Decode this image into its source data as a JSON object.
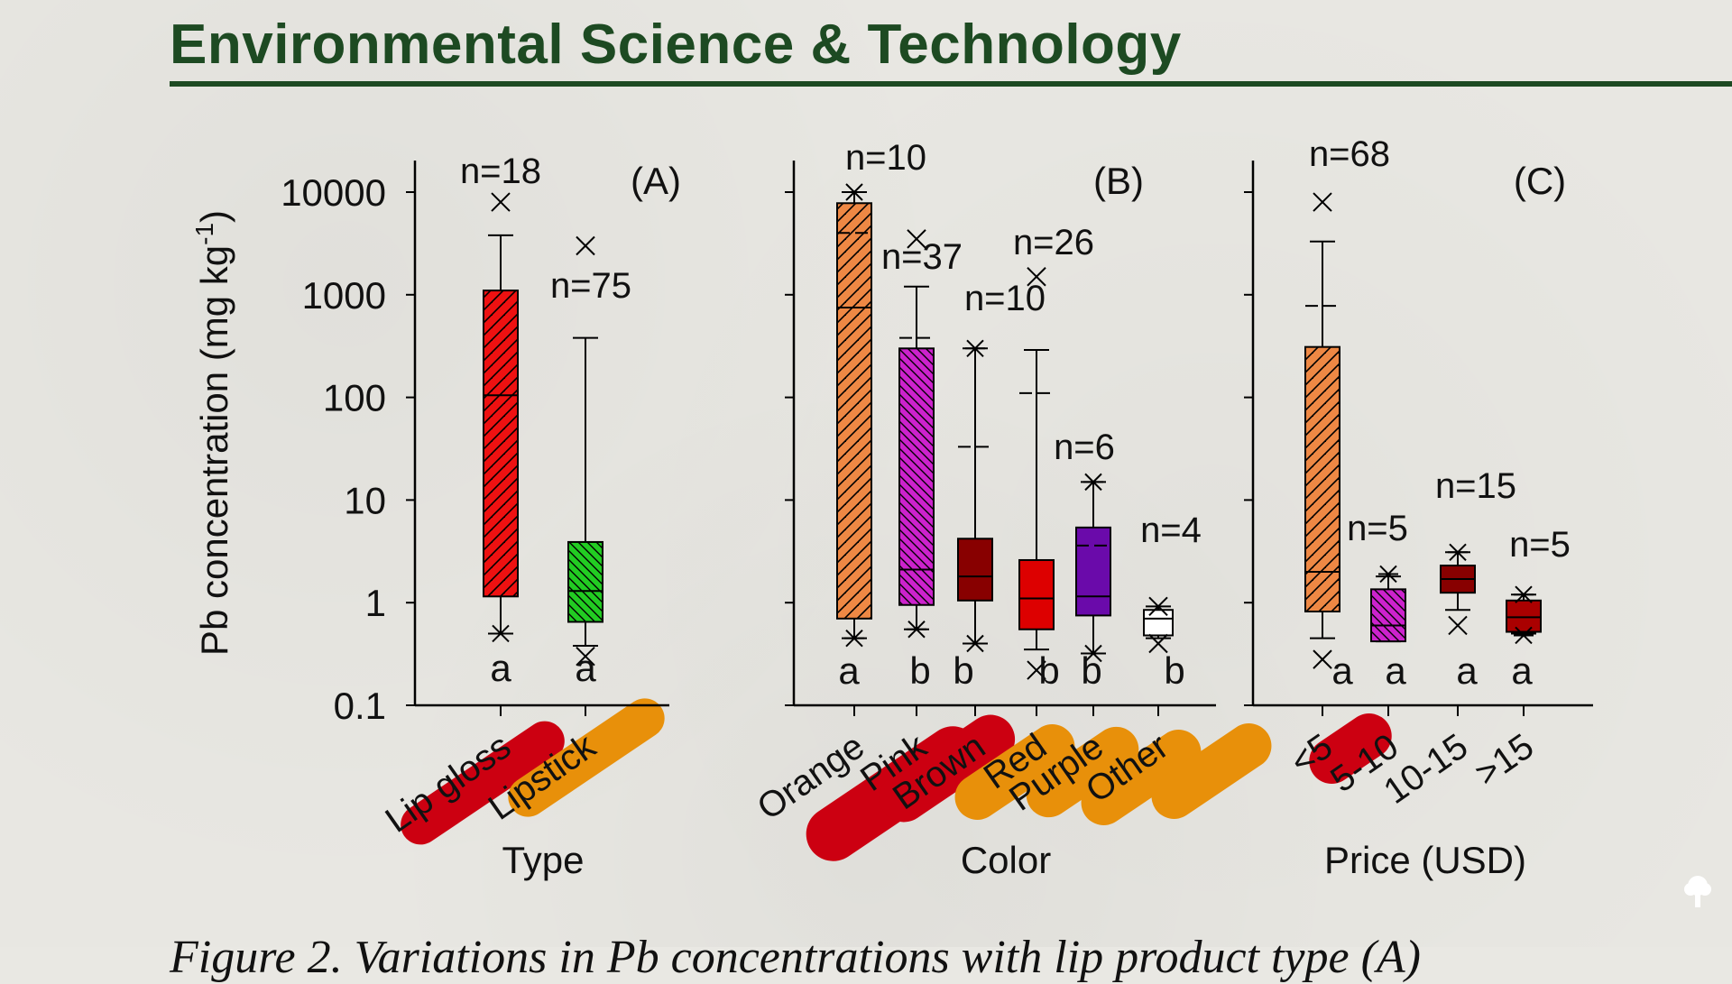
{
  "page": {
    "journal_title": "Environmental Science & Technology",
    "caption": "Figure 2. Variations in Pb concentrations with lip product type (A)"
  },
  "chart_data": {
    "type": "box",
    "scale": "log",
    "ylabel": "Pb concentration (mg kg",
    "ylabel_sup": "-1",
    "ylabel_end": ")",
    "ylim": [
      0.1,
      10000
    ],
    "yticks": [
      "0.1",
      "1",
      "10",
      "100",
      "1000",
      "10000"
    ],
    "colors": {
      "red": "#ee1111",
      "green": "#22cc22",
      "orange": "#ee8844",
      "magenta": "#cc22cc",
      "darkred": "#880000",
      "redbox": "#dd0000",
      "purple": "#6a0aaa",
      "white": "#ffffff",
      "maroon": "#aa0000",
      "highlight_red": "#cc0011",
      "highlight_orange": "#e8900a"
    },
    "panels": [
      {
        "label": "(A)",
        "xlabel": "Type",
        "categories": [
          "Lip gloss",
          "Lipstick"
        ],
        "boxes": [
          {
            "name": "Lip gloss",
            "n": "n=18",
            "letter": "a",
            "color": "red",
            "hatch": "fwd",
            "whisker_low": 0.5,
            "q1": 1.15,
            "median": 105,
            "q3": 1100,
            "whisker_high": 3800,
            "outliers_x": [
              8000
            ],
            "outliers_star": [
              0.5
            ],
            "highlight": "red"
          },
          {
            "name": "Lipstick",
            "n": "n=75",
            "letter": "a",
            "color": "green",
            "hatch": "back",
            "whisker_low": 0.38,
            "q1": 0.65,
            "median": 1.3,
            "q3": 3.9,
            "whisker_high": 380,
            "outliers_x": [
              3000,
              0.3
            ],
            "outliers_star": [],
            "highlight": "orange"
          }
        ]
      },
      {
        "label": "(B)",
        "xlabel": "Color",
        "categories": [
          "Orange",
          "Pink",
          "Brown",
          "Red",
          "Purple",
          "Other"
        ],
        "boxes": [
          {
            "name": "Orange",
            "n": "n=10",
            "letter": "a",
            "color": "orange",
            "hatch": "fwd",
            "whisker_low": 0.45,
            "q1": 0.7,
            "median": 750,
            "q3": 7800,
            "whisker_high": 10000,
            "mean": 4000,
            "outliers_x": [],
            "outliers_star": [
              0.45,
              10000
            ],
            "highlight": "red"
          },
          {
            "name": "Pink",
            "n": "n=37",
            "letter": "b",
            "color": "magenta",
            "hatch": "back",
            "whisker_low": 0.55,
            "q1": 0.95,
            "median": 2.1,
            "q3": 300,
            "whisker_high": 1200,
            "mean": 380,
            "outliers_x": [
              3500
            ],
            "outliers_star": [
              0.55
            ],
            "highlight": "red"
          },
          {
            "name": "Brown",
            "n": "n=10",
            "letter": "b",
            "color": "darkred",
            "hatch": "none",
            "whisker_low": 0.4,
            "q1": 1.05,
            "median": 1.8,
            "q3": 4.2,
            "whisker_high": 300,
            "mean": 33,
            "outliers_x": [],
            "outliers_star": [
              0.4,
              300
            ],
            "highlight": "orange"
          },
          {
            "name": "Red",
            "n": "n=26",
            "letter": "b",
            "color": "redbox",
            "hatch": "none",
            "whisker_low": 0.35,
            "q1": 0.55,
            "median": 1.1,
            "q3": 2.6,
            "whisker_high": 290,
            "mean": 110,
            "outliers_x": [
              1500,
              0.22
            ],
            "outliers_star": [],
            "highlight": "orange"
          },
          {
            "name": "Purple",
            "n": "n=6",
            "letter": "b",
            "color": "purple",
            "hatch": "none",
            "whisker_low": 0.32,
            "q1": 0.75,
            "median": 1.15,
            "q3": 5.4,
            "whisker_high": 15,
            "mean": 3.6,
            "outliers_x": [],
            "outliers_star": [
              0.32,
              15
            ],
            "highlight": "orange"
          },
          {
            "name": "Other",
            "n": "n=4",
            "letter": "b",
            "color": "white",
            "hatch": "none",
            "whisker_low": 0.45,
            "q1": 0.48,
            "median": 0.7,
            "q3": 0.85,
            "whisker_high": 0.92,
            "outliers_x": [
              0.92,
              0.4
            ],
            "outliers_star": [],
            "highlight": "orange"
          }
        ]
      },
      {
        "label": "(C)",
        "xlabel": "Price (USD)",
        "categories": [
          "<5",
          "5-10",
          "10-15",
          ">15"
        ],
        "boxes": [
          {
            "name": "<5",
            "n": "n=68",
            "letter": "a",
            "color": "orange",
            "hatch": "fwd",
            "whisker_low": 0.45,
            "q1": 0.82,
            "median": 2,
            "q3": 310,
            "whisker_high": 3300,
            "mean": 780,
            "outliers_x": [
              8000,
              0.28
            ],
            "outliers_star": [],
            "highlight": "red"
          },
          {
            "name": "5-10",
            "n": "n=5",
            "letter": "a",
            "color": "magenta",
            "hatch": "back",
            "whisker_low": 0.42,
            "q1": 0.42,
            "median": 0.6,
            "q3": 1.35,
            "whisker_high": 1.8,
            "outliers_x": [],
            "outliers_star": [
              1.9
            ],
            "highlight": "none"
          },
          {
            "name": "10-15",
            "n": "n=15",
            "letter": "a",
            "color": "darkred",
            "hatch": "none",
            "whisker_low": 0.85,
            "q1": 1.25,
            "median": 1.7,
            "q3": 2.3,
            "whisker_high": 3.1,
            "outliers_x": [
              0.6
            ],
            "outliers_star": [
              3.1
            ],
            "highlight": "none"
          },
          {
            "name": ">15",
            "n": "n=5",
            "letter": "a",
            "color": "maroon",
            "hatch": "none",
            "whisker_low": 0.5,
            "q1": 0.52,
            "median": 0.72,
            "q3": 1.05,
            "whisker_high": 1.2,
            "outliers_x": [],
            "outliers_star": [
              1.2,
              0.48
            ],
            "highlight": "none"
          }
        ]
      }
    ]
  }
}
